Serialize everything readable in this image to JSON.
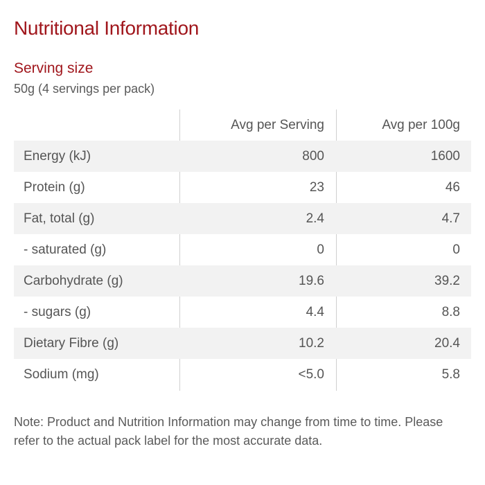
{
  "title": "Nutritional Information",
  "serving": {
    "heading": "Serving size",
    "value": "50g (4 servings per pack)"
  },
  "table": {
    "headers": [
      "",
      "Avg per Serving",
      "Avg per 100g"
    ],
    "rows": [
      {
        "label": "Energy (kJ)",
        "per_serving": "800",
        "per_100g": "1600"
      },
      {
        "label": "Protein (g)",
        "per_serving": "23",
        "per_100g": "46"
      },
      {
        "label": "Fat, total (g)",
        "per_serving": "2.4",
        "per_100g": "4.7"
      },
      {
        "label": "- saturated (g)",
        "per_serving": "0",
        "per_100g": "0"
      },
      {
        "label": "Carbohydrate (g)",
        "per_serving": "19.6",
        "per_100g": "39.2"
      },
      {
        "label": "- sugars (g)",
        "per_serving": "4.4",
        "per_100g": "8.8"
      },
      {
        "label": "Dietary Fibre (g)",
        "per_serving": "10.2",
        "per_100g": "20.4"
      },
      {
        "label": "Sodium (mg)",
        "per_serving": "<5.0",
        "per_100g": "5.8"
      }
    ]
  },
  "note": "Note: Product and Nutrition Information may change from time to time. Please refer to the actual pack label for the most accurate data.",
  "colors": {
    "heading": "#a0161c",
    "text": "#555555",
    "row_shade": "#f2f2f2",
    "divider": "#cfcfcf"
  }
}
